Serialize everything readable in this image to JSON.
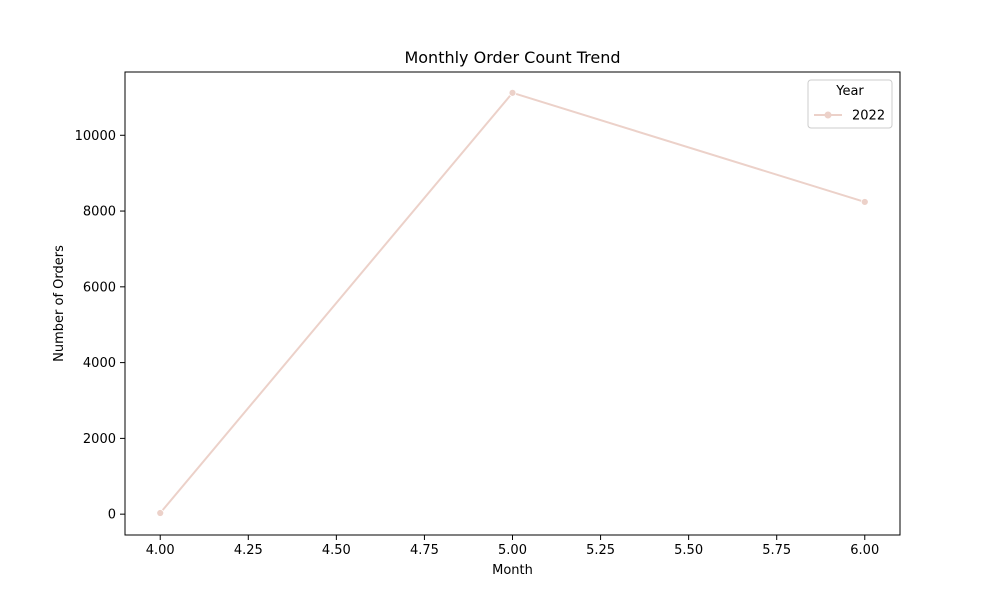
{
  "chart_data": {
    "type": "line",
    "title": "Monthly Order Count Trend",
    "xlabel": "Month",
    "ylabel": "Number of Orders",
    "x": [
      4.0,
      5.0,
      6.0
    ],
    "series": [
      {
        "name": "2022",
        "values": [
          30,
          11120,
          8240
        ],
        "color": "#ecd1c9"
      }
    ],
    "xlim": [
      3.9,
      6.1
    ],
    "ylim": [
      -550,
      11670
    ],
    "x_ticks": [
      4.0,
      4.25,
      4.5,
      4.75,
      5.0,
      5.25,
      5.5,
      5.75,
      6.0
    ],
    "x_tick_labels": [
      "4.00",
      "4.25",
      "4.50",
      "4.75",
      "5.00",
      "5.25",
      "5.50",
      "5.75",
      "6.00"
    ],
    "y_ticks": [
      0,
      2000,
      4000,
      6000,
      8000,
      10000
    ],
    "y_tick_labels": [
      "0",
      "2000",
      "4000",
      "6000",
      "8000",
      "10000"
    ],
    "grid": false,
    "legend": {
      "title": "Year",
      "placement": "upper-right"
    }
  }
}
